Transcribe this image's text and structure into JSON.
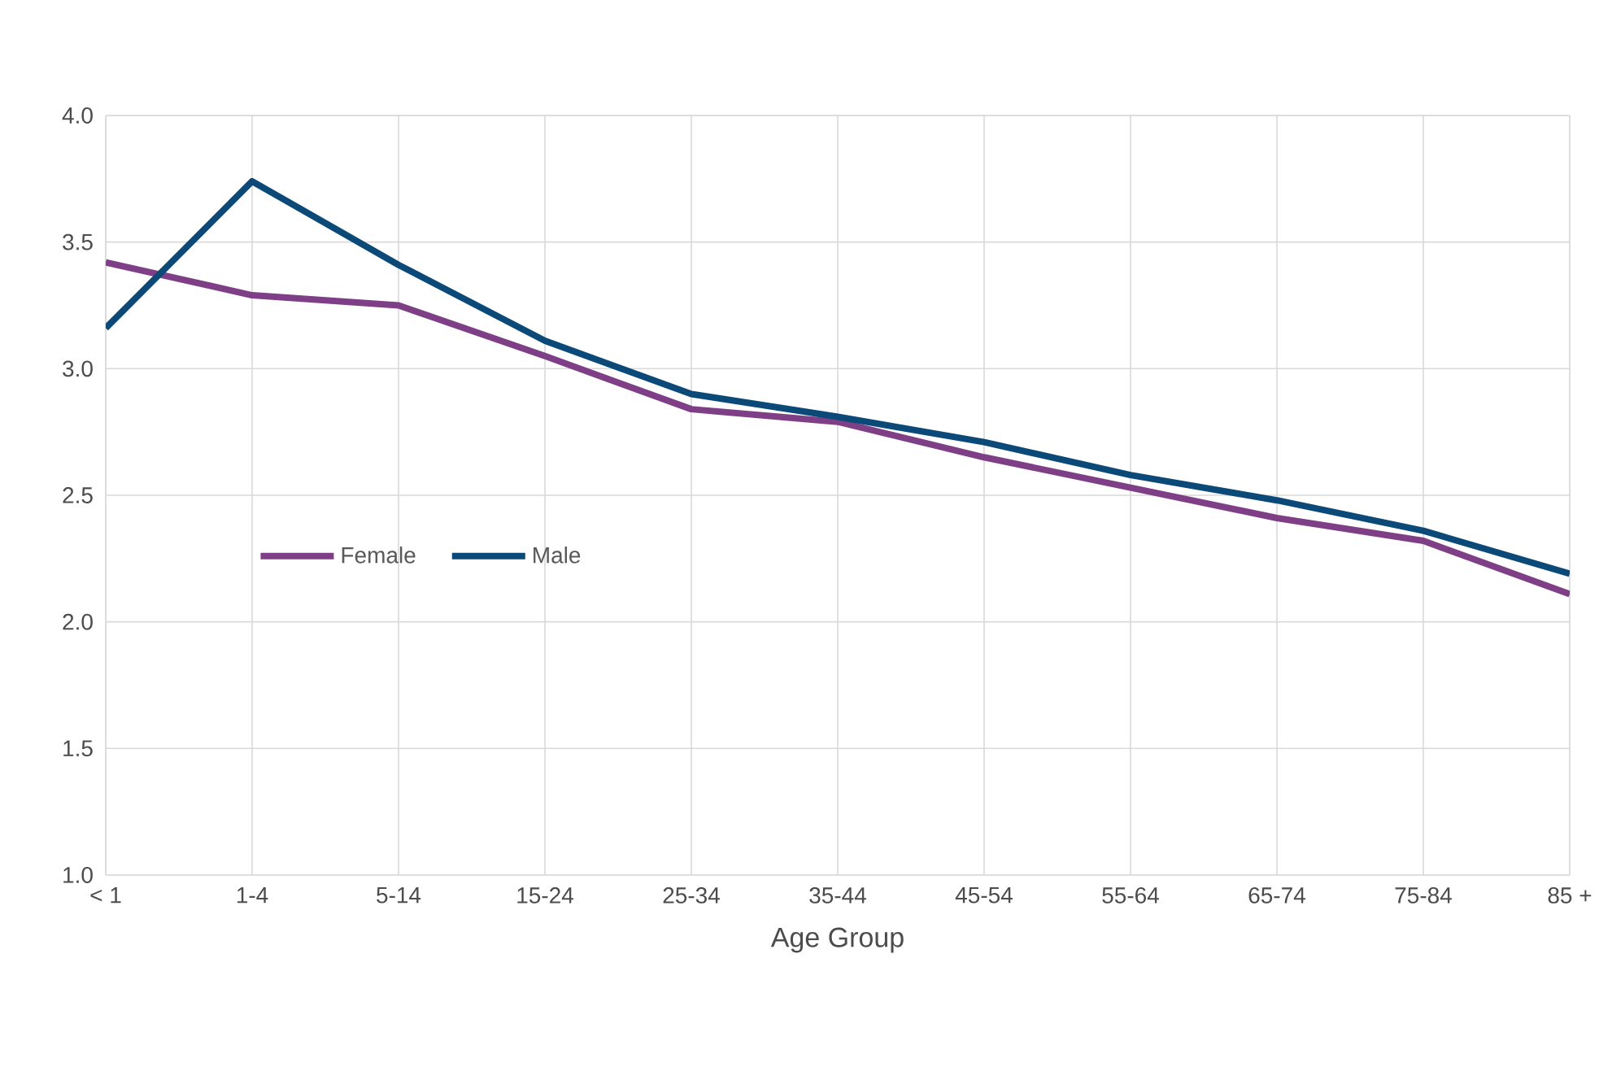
{
  "chart_data": {
    "type": "line",
    "xlabel": "Age Group",
    "categories": [
      "< 1",
      "1-4",
      "5-14",
      "15-24",
      "25-34",
      "35-44",
      "45-54",
      "55-64",
      "65-74",
      "75-84",
      "85 +"
    ],
    "series": [
      {
        "name": "Female",
        "color": "#7f3f86",
        "values": [
          3.42,
          3.29,
          3.25,
          3.05,
          2.84,
          2.79,
          2.65,
          2.53,
          2.41,
          2.32,
          2.11
        ]
      },
      {
        "name": "Male",
        "color": "#0b4a78",
        "values": [
          3.16,
          3.74,
          3.41,
          3.11,
          2.9,
          2.81,
          2.71,
          2.58,
          2.48,
          2.36,
          2.19
        ]
      }
    ],
    "ylim": [
      1.0,
      4.0
    ],
    "yticks": [
      {
        "value": 1.0,
        "label": "1.0"
      },
      {
        "value": 1.5,
        "label": "1.5"
      },
      {
        "value": 2.0,
        "label": "2.0"
      },
      {
        "value": 2.5,
        "label": "2.5"
      },
      {
        "value": 3.0,
        "label": "3.0"
      },
      {
        "value": 3.5,
        "label": "3.5"
      },
      {
        "value": 4.0,
        "label": "4.0"
      }
    ],
    "grid": true,
    "legend": "left",
    "marker": "none",
    "line_style": "solid"
  }
}
